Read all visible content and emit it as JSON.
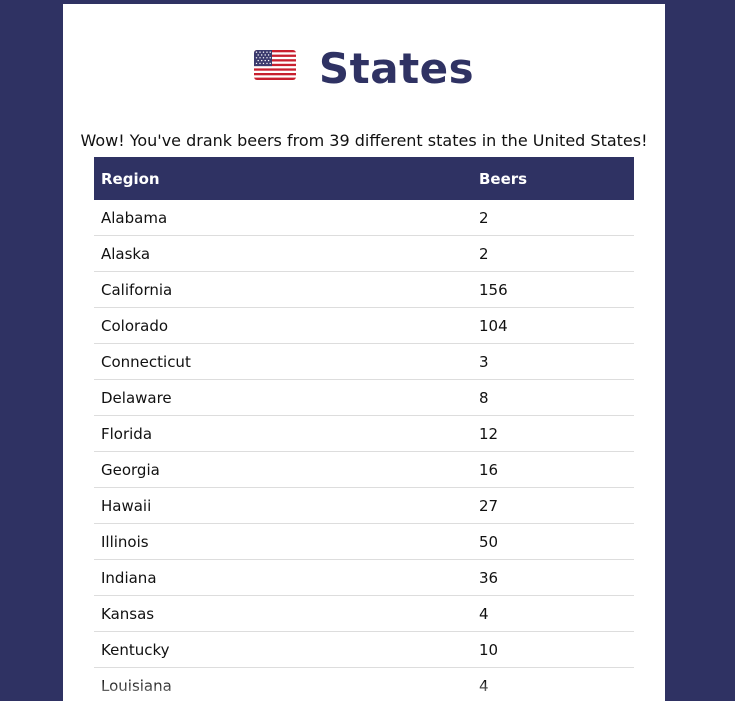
{
  "page": {
    "title": "States",
    "flag_icon": "us-flag-icon",
    "summary": "Wow! You've drank beers from 39 different states in the United States!"
  },
  "table": {
    "headers": [
      "Region",
      "Beers"
    ],
    "rows": [
      {
        "region": "Alabama",
        "beers": "2"
      },
      {
        "region": "Alaska",
        "beers": "2"
      },
      {
        "region": "California",
        "beers": "156"
      },
      {
        "region": "Colorado",
        "beers": "104"
      },
      {
        "region": "Connecticut",
        "beers": "3"
      },
      {
        "region": "Delaware",
        "beers": "8"
      },
      {
        "region": "Florida",
        "beers": "12"
      },
      {
        "region": "Georgia",
        "beers": "16"
      },
      {
        "region": "Hawaii",
        "beers": "27"
      },
      {
        "region": "Illinois",
        "beers": "50"
      },
      {
        "region": "Indiana",
        "beers": "36"
      },
      {
        "region": "Kansas",
        "beers": "4"
      },
      {
        "region": "Kentucky",
        "beers": "10"
      },
      {
        "region": "Louisiana",
        "beers": "4"
      }
    ]
  },
  "colors": {
    "background": "#2f3263",
    "header_bg": "#2f3263",
    "card": "#ffffff"
  }
}
